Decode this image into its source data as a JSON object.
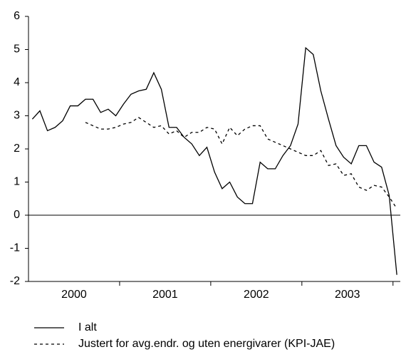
{
  "chart_data": {
    "type": "line",
    "x": [
      2000.042,
      2000.125,
      2000.208,
      2000.292,
      2000.375,
      2000.458,
      2000.542,
      2000.625,
      2000.708,
      2000.792,
      2000.875,
      2000.958,
      2001.042,
      2001.125,
      2001.208,
      2001.292,
      2001.375,
      2001.458,
      2001.542,
      2001.625,
      2001.708,
      2001.792,
      2001.875,
      2001.958,
      2002.042,
      2002.125,
      2002.208,
      2002.292,
      2002.375,
      2002.458,
      2002.542,
      2002.625,
      2002.708,
      2002.792,
      2002.875,
      2002.958,
      2003.042,
      2003.125,
      2003.208,
      2003.292,
      2003.375,
      2003.458,
      2003.542,
      2003.625,
      2003.708,
      2003.792,
      2003.875,
      2003.958,
      2004.042
    ],
    "series": [
      {
        "name": "I alt",
        "color": "#000000",
        "dash": false,
        "values": [
          2.9,
          3.15,
          2.55,
          2.65,
          2.85,
          3.3,
          3.3,
          3.5,
          3.5,
          3.1,
          3.2,
          3.0,
          3.35,
          3.65,
          3.75,
          3.8,
          4.3,
          3.8,
          2.65,
          2.65,
          2.35,
          2.15,
          1.8,
          2.05,
          1.3,
          0.8,
          1.0,
          0.55,
          0.35,
          0.35,
          1.6,
          1.4,
          1.4,
          1.8,
          2.1,
          2.75,
          5.05,
          4.85,
          3.75,
          2.9,
          2.1,
          1.75,
          1.55,
          2.1,
          2.1,
          1.6,
          1.45,
          0.6,
          -1.8
        ]
      },
      {
        "name": "Justert for avg.endr. og uten energivarer (KPI-JAE)",
        "color": "#000000",
        "dash": true,
        "values": [
          null,
          null,
          null,
          null,
          null,
          null,
          null,
          2.8,
          2.7,
          2.6,
          2.6,
          2.65,
          2.75,
          2.8,
          2.95,
          2.8,
          2.65,
          2.7,
          2.45,
          2.55,
          2.35,
          2.5,
          2.5,
          2.65,
          2.6,
          2.15,
          2.65,
          2.4,
          2.6,
          2.7,
          2.7,
          2.3,
          2.2,
          2.1,
          2.0,
          1.9,
          1.8,
          1.8,
          1.95,
          1.5,
          1.55,
          1.2,
          1.25,
          0.85,
          0.75,
          0.9,
          0.85,
          0.55,
          0.2
        ]
      }
    ],
    "xlim": [
      2000,
      2004.08
    ],
    "xticks": [
      {
        "value": 2000.5,
        "label": "2000"
      },
      {
        "value": 2001.5,
        "label": "2001"
      },
      {
        "value": 2002.5,
        "label": "2002"
      },
      {
        "value": 2003.5,
        "label": "2003"
      }
    ],
    "ylim": [
      -2,
      6
    ],
    "yticks": [
      -2,
      -1,
      0,
      1,
      2,
      3,
      4,
      5,
      6
    ],
    "grid": false
  }
}
